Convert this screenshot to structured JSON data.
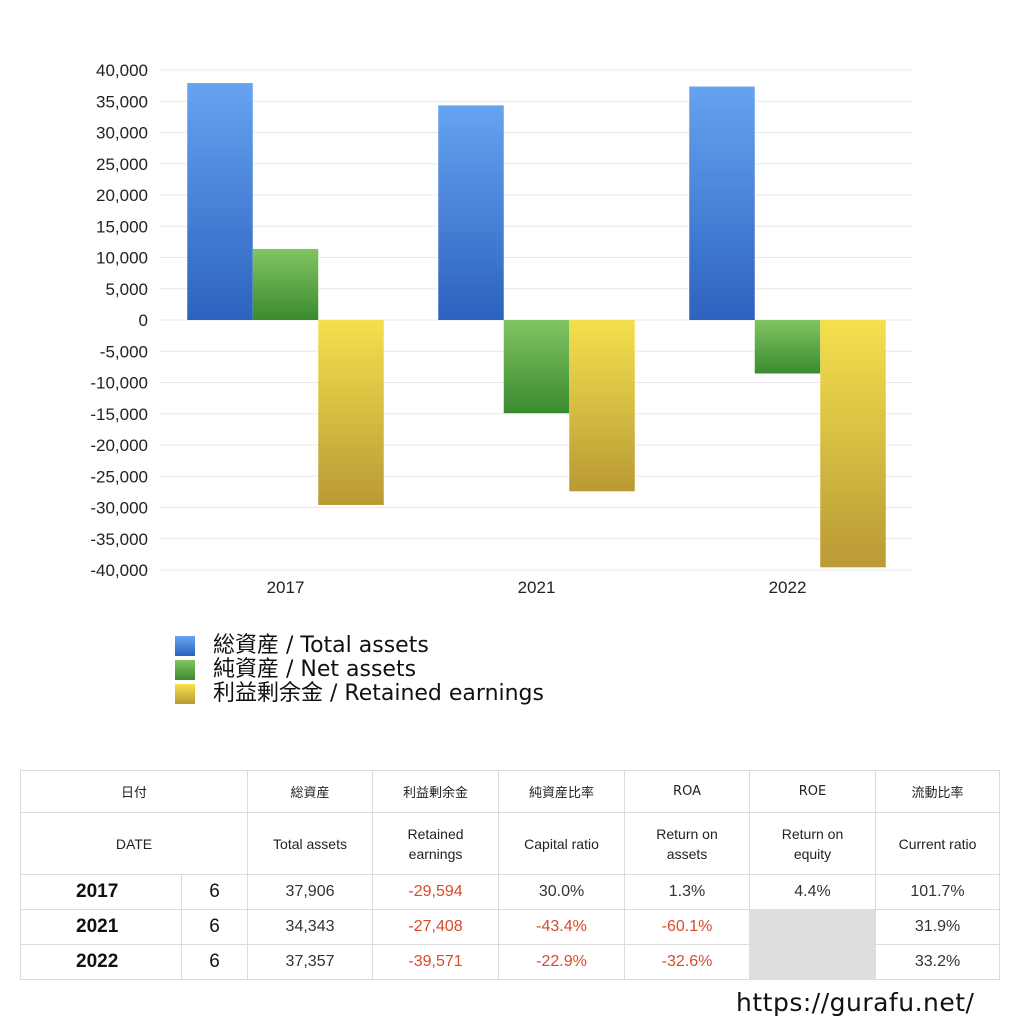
{
  "chart_data": {
    "type": "bar",
    "categories": [
      "2017",
      "2021",
      "2022"
    ],
    "series": [
      {
        "name": "総資産 / Total assets",
        "values": [
          37906,
          34343,
          37357
        ],
        "color_top": "#66a3f0",
        "color_bottom": "#2d62bf"
      },
      {
        "name": "純資産 / Net assets",
        "values": [
          11372,
          -14904,
          -8555
        ],
        "color_top": "#82c462",
        "color_bottom": "#3a8b2f"
      },
      {
        "name": "利益剰余金 / Retained earnings",
        "values": [
          -29594,
          -27408,
          -39571
        ],
        "color_top": "#f4e04e",
        "color_bottom": "#b99a35"
      }
    ],
    "ylim": [
      -40000,
      40000
    ],
    "ytick_step": 5000,
    "yticks": [
      "40,000",
      "35,000",
      "30,000",
      "25,000",
      "20,000",
      "15,000",
      "10,000",
      "5,000",
      "0",
      "-5,000",
      "-10,000",
      "-15,000",
      "-20,000",
      "-25,000",
      "-30,000",
      "-35,000",
      "-40,000"
    ],
    "grid": true,
    "legend_position": "bottom-left",
    "xlabel": "",
    "ylabel": ""
  },
  "legend": [
    {
      "label": "総資産 / Total assets",
      "color": "#3f7fd8"
    },
    {
      "label": "純資産 / Net assets",
      "color": "#4f9e3c"
    },
    {
      "label": "利益剰余金 / Retained earnings",
      "color": "#d9c043"
    }
  ],
  "table": {
    "header_jp": [
      "日付",
      "総資産",
      "利益剰余金",
      "純資産比率",
      "ROA",
      "ROE",
      "流動比率"
    ],
    "header_en": [
      "DATE",
      "Total assets",
      "Retained earnings",
      "Capital ratio",
      "Return on assets",
      "Return on equity",
      "Current ratio"
    ],
    "rows": [
      {
        "year": "2017",
        "count": "6",
        "total_assets": "37,906",
        "retained": "-29,594",
        "capital_ratio": "30.0%",
        "roa": "1.3%",
        "roe": "4.4%",
        "current": "101.7%"
      },
      {
        "year": "2021",
        "count": "6",
        "total_assets": "34,343",
        "retained": "-27,408",
        "capital_ratio": "-43.4%",
        "roa": "-60.1%",
        "roe": "",
        "current": "31.9%"
      },
      {
        "year": "2022",
        "count": "6",
        "total_assets": "37,357",
        "retained": "-39,571",
        "capital_ratio": "-22.9%",
        "roa": "-32.6%",
        "roe": "",
        "current": "33.2%"
      }
    ]
  },
  "site_url": "https://gurafu.net/",
  "colors": {
    "negative_text": "#d94a2b",
    "blank_cell": "#dedede"
  }
}
